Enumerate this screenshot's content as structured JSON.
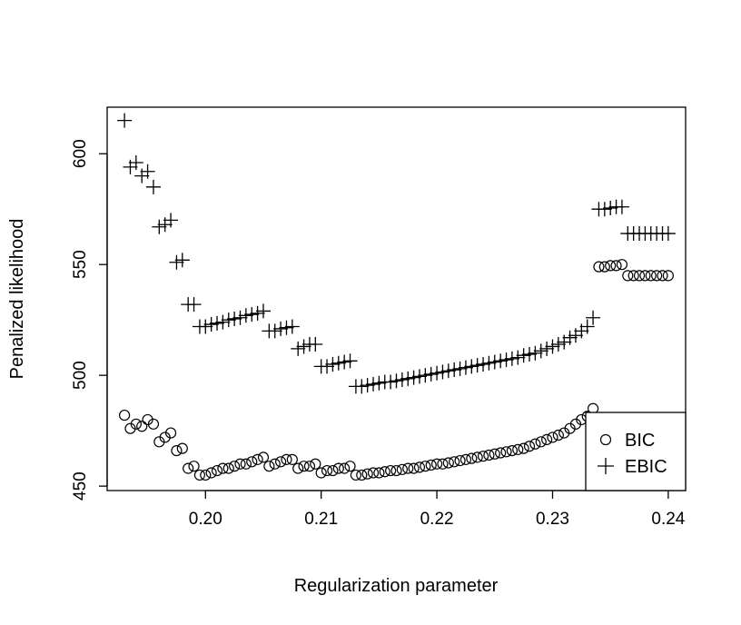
{
  "chart_data": {
    "type": "scatter",
    "title": "",
    "xlabel": "Regularization parameter",
    "ylabel": "Penalized likelihood",
    "xlim": [
      0.1915,
      0.2415
    ],
    "ylim": [
      448,
      621
    ],
    "xticks": [
      0.2,
      0.21,
      0.22,
      0.23,
      0.24
    ],
    "xtick_labels": [
      "0.20",
      "0.21",
      "0.22",
      "0.23",
      "0.24"
    ],
    "yticks": [
      450,
      500,
      550,
      600
    ],
    "ytick_labels": [
      "450",
      "500",
      "550",
      "600"
    ],
    "grid": false,
    "legend_position": "bottom-right",
    "series": [
      {
        "name": "BIC",
        "marker": "circle",
        "x": [
          0.193,
          0.1935,
          0.194,
          0.1945,
          0.195,
          0.1955,
          0.196,
          0.1965,
          0.197,
          0.1975,
          0.198,
          0.1985,
          0.199,
          0.1995,
          0.2,
          0.2005,
          0.201,
          0.2015,
          0.202,
          0.2025,
          0.203,
          0.2035,
          0.204,
          0.2045,
          0.205,
          0.2055,
          0.206,
          0.2065,
          0.207,
          0.2075,
          0.208,
          0.2085,
          0.209,
          0.2095,
          0.21,
          0.2105,
          0.211,
          0.2115,
          0.212,
          0.2125,
          0.213,
          0.2135,
          0.214,
          0.2145,
          0.215,
          0.2155,
          0.216,
          0.2165,
          0.217,
          0.2175,
          0.218,
          0.2185,
          0.219,
          0.2195,
          0.22,
          0.2205,
          0.221,
          0.2215,
          0.222,
          0.2225,
          0.223,
          0.2235,
          0.224,
          0.2245,
          0.225,
          0.2255,
          0.226,
          0.2265,
          0.227,
          0.2275,
          0.228,
          0.2285,
          0.229,
          0.2295,
          0.23,
          0.2305,
          0.231,
          0.2315,
          0.232,
          0.2325,
          0.233,
          0.2335,
          0.234,
          0.2345,
          0.235,
          0.2355,
          0.236,
          0.2365,
          0.237,
          0.2375,
          0.238,
          0.2385,
          0.239,
          0.2395,
          0.24
        ],
        "y": [
          482,
          476,
          478,
          477,
          480,
          478,
          470,
          472,
          474,
          466,
          467,
          458,
          459,
          455,
          455,
          456,
          457,
          458,
          458,
          459,
          460,
          460,
          461,
          462,
          463,
          459,
          460,
          461,
          462,
          462,
          458,
          459,
          459,
          460,
          456,
          457,
          457,
          458,
          458,
          459,
          455,
          455,
          455.5,
          456,
          456,
          456.5,
          457,
          457,
          457.5,
          458,
          458,
          458.5,
          459,
          459.5,
          460,
          460,
          460.5,
          461,
          461.5,
          462,
          462.5,
          463,
          463.5,
          464,
          464.5,
          465,
          465.5,
          466,
          466.5,
          467,
          468,
          469,
          470,
          471,
          472,
          473,
          474,
          476,
          478,
          480,
          481.5,
          485,
          549,
          549,
          549.5,
          549.5,
          550,
          545,
          545,
          545,
          545,
          545,
          545,
          545,
          545
        ]
      },
      {
        "name": "EBIC",
        "marker": "plus",
        "x": [
          0.193,
          0.1935,
          0.194,
          0.1945,
          0.195,
          0.1955,
          0.196,
          0.1965,
          0.197,
          0.1975,
          0.198,
          0.1985,
          0.199,
          0.1995,
          0.2,
          0.2005,
          0.201,
          0.2015,
          0.202,
          0.2025,
          0.203,
          0.2035,
          0.204,
          0.2045,
          0.205,
          0.2055,
          0.206,
          0.2065,
          0.207,
          0.2075,
          0.208,
          0.2085,
          0.209,
          0.2095,
          0.21,
          0.2105,
          0.211,
          0.2115,
          0.212,
          0.2125,
          0.213,
          0.2135,
          0.214,
          0.2145,
          0.215,
          0.2155,
          0.216,
          0.2165,
          0.217,
          0.2175,
          0.218,
          0.2185,
          0.219,
          0.2195,
          0.22,
          0.2205,
          0.221,
          0.2215,
          0.222,
          0.2225,
          0.223,
          0.2235,
          0.224,
          0.2245,
          0.225,
          0.2255,
          0.226,
          0.2265,
          0.227,
          0.2275,
          0.228,
          0.2285,
          0.229,
          0.2295,
          0.23,
          0.2305,
          0.231,
          0.2315,
          0.232,
          0.2325,
          0.233,
          0.2335,
          0.234,
          0.2345,
          0.235,
          0.2355,
          0.236,
          0.2365,
          0.237,
          0.2375,
          0.238,
          0.2385,
          0.239,
          0.2395,
          0.24
        ],
        "y": [
          615,
          594,
          596,
          590,
          592,
          585,
          567,
          568,
          570,
          551,
          552,
          532,
          532,
          522,
          522,
          523,
          523.5,
          524,
          525,
          525.5,
          526,
          527,
          527.5,
          528,
          529,
          520,
          520,
          521,
          521.5,
          522,
          512,
          513,
          514,
          514,
          504,
          504,
          505,
          505.5,
          506,
          506.5,
          495,
          495,
          495.5,
          496,
          496.5,
          497,
          497,
          497.5,
          498,
          498.5,
          499,
          499.5,
          500,
          500.5,
          501,
          501.5,
          502,
          502.5,
          503,
          503.5,
          504,
          504.5,
          505,
          505.5,
          506,
          506.5,
          507,
          507.5,
          508,
          509,
          509.5,
          510,
          511,
          512,
          513,
          514,
          515,
          517,
          518,
          520,
          522,
          526,
          575,
          575,
          575.5,
          576,
          576,
          564,
          564,
          564,
          564,
          564,
          564,
          564,
          564
        ]
      }
    ]
  }
}
